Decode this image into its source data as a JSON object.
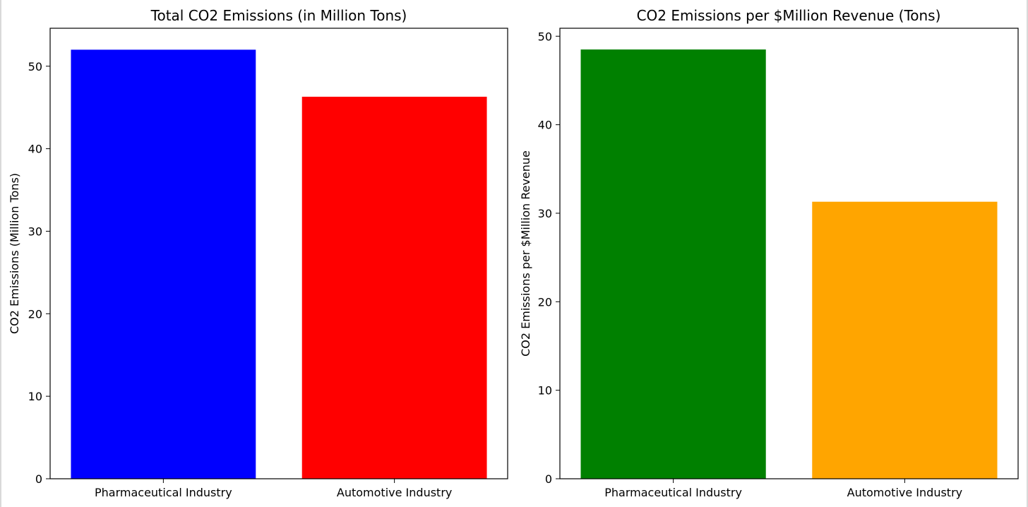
{
  "chart_data": [
    {
      "type": "bar",
      "title": "Total CO2 Emissions (in Million Tons)",
      "xlabel": "",
      "ylabel": "CO2 Emissions (Million Tons)",
      "categories": [
        "Pharmaceutical Industry",
        "Automotive Industry"
      ],
      "values": [
        52.0,
        46.3
      ],
      "colors": [
        "#0000ff",
        "#ff0000"
      ],
      "ylim": [
        0,
        54.6
      ],
      "yticks": [
        0,
        10,
        20,
        30,
        40,
        50
      ],
      "grid": false
    },
    {
      "type": "bar",
      "title": "CO2 Emissions per $Million Revenue (Tons)",
      "xlabel": "",
      "ylabel": "CO2 Emissions per $Million Revenue",
      "categories": [
        "Pharmaceutical Industry",
        "Automotive Industry"
      ],
      "values": [
        48.5,
        31.3
      ],
      "colors": [
        "#008000",
        "#ffa500"
      ],
      "ylim": [
        0,
        50.9
      ],
      "yticks": [
        0,
        10,
        20,
        30,
        40,
        50
      ],
      "grid": false
    }
  ]
}
